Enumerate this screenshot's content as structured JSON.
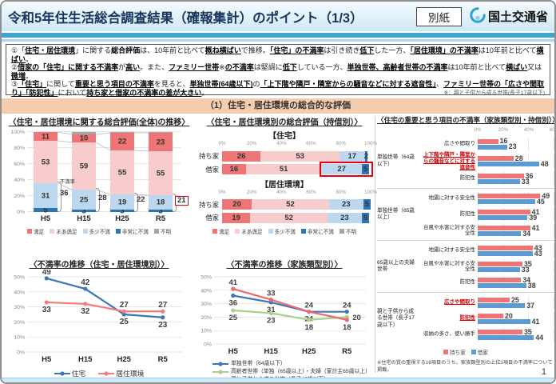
{
  "header": {
    "title": "令和5年住生活総合調査結果（確報集計）のポイント（1/3）",
    "badge": "別紙",
    "ministry": "国土交通省"
  },
  "points": [
    {
      "segments": [
        {
          "t": "①「"
        },
        {
          "t": "住宅・居住環境",
          "b": 1,
          "u": 1
        },
        {
          "t": "」に関する"
        },
        {
          "t": "総合評価",
          "b": 1
        },
        {
          "t": "は、10年前と比べて"
        },
        {
          "t": "概ね横ばい",
          "b": 1,
          "u": 1
        },
        {
          "t": "で推移。"
        },
        {
          "t": "「住宅」の不満率",
          "b": 1,
          "u": 1
        },
        {
          "t": "は引き続き"
        },
        {
          "t": "低下",
          "b": 1,
          "u": 1
        },
        {
          "t": "した一方、"
        },
        {
          "t": "「居住環境」の不満率",
          "b": 1,
          "u": 1
        },
        {
          "t": "は10年前と比べて"
        },
        {
          "t": "横ばい",
          "b": 1,
          "u": 1
        },
        {
          "t": "。"
        }
      ]
    },
    {
      "segments": [
        {
          "t": "②"
        },
        {
          "t": "借家の「住宅」に関する不満率",
          "b": 1,
          "u": 1
        },
        {
          "t": "が"
        },
        {
          "t": "高い",
          "b": 1,
          "u": 1
        },
        {
          "t": "。また、"
        },
        {
          "t": "ファミリー世帯",
          "b": 1,
          "u": 1
        },
        {
          "t": "※"
        },
        {
          "t": "の不満率",
          "b": 1,
          "u": 1
        },
        {
          "t": "は堅調に"
        },
        {
          "t": "低下",
          "b": 1,
          "u": 1
        },
        {
          "t": "している一方、"
        },
        {
          "t": "単独世帯、高齢者世帯の不満率",
          "b": 1,
          "u": 1
        },
        {
          "t": "は10年前と比べて"
        },
        {
          "t": "横ばい",
          "b": 1,
          "u": 1
        },
        {
          "t": "又は"
        },
        {
          "t": "微増",
          "b": 1,
          "u": 1
        },
        {
          "t": "。"
        }
      ]
    },
    {
      "segments": [
        {
          "t": "③"
        },
        {
          "t": "「住宅」",
          "b": 1,
          "u": 1
        },
        {
          "t": "に関して"
        },
        {
          "t": "重要と思う項目の不満率",
          "b": 1,
          "u": 1
        },
        {
          "t": "を見ると、"
        },
        {
          "t": "単独世帯(64歳以下)",
          "b": 1,
          "u": 1
        },
        {
          "t": "の"
        },
        {
          "t": "「上下階や隣戸・隣室からの騒音などに対する遮音性」",
          "b": 1,
          "u": 1
        },
        {
          "t": "、"
        },
        {
          "t": "ファミリー世帯の「広さや間取り」「防犯性」",
          "b": 1,
          "u": 1
        },
        {
          "t": "において"
        },
        {
          "t": "持ち家と借家の不満率の差が大きい",
          "b": 1,
          "u": 1
        },
        {
          "t": "。"
        }
      ]
    }
  ],
  "points_note": "※：親と子供から成る世帯(長子17歳以下)",
  "section_title": "（1）住宅・居住環境の総合的な評価",
  "page_number": "1",
  "colors": {
    "satisfied": "#ee7576",
    "somewhat_satisfied": "#f8cbcc",
    "somewhat_dissatisfied": "#bdd7ee",
    "very_dissatisfied": "#2e75b6",
    "unknown": "#a6a6a6",
    "owned": "#ee7576",
    "rented": "#5b9bd5",
    "highlight_red": "#e60012"
  },
  "chart_data": [
    {
      "id": "overall-evaluation-trend",
      "type": "bar",
      "title": "〈住宅・居住環境に関する総合評価(全体)の推移〉",
      "categories": [
        "H5",
        "H15",
        "H25",
        "R5"
      ],
      "series": [
        {
          "name": "非常に不満",
          "color": "#2e75b6",
          "values": [
            5,
            3,
            3,
            3
          ]
        },
        {
          "name": "多少不満",
          "color": "#bdd7ee",
          "values": [
            31,
            25,
            19,
            18
          ]
        },
        {
          "name": "まあ満足",
          "color": "#f8cbcc",
          "values": [
            53,
            59,
            55,
            55
          ]
        },
        {
          "name": "満足",
          "color": "#ee7576",
          "values": [
            11,
            10,
            22,
            23
          ]
        },
        {
          "name": "不明",
          "color": "#a6a6a6",
          "values": [
            0,
            3,
            1,
            1
          ]
        }
      ],
      "ylim": [
        0,
        100
      ],
      "yticks": [
        "0%",
        "20%",
        "40%",
        "60%",
        "80%",
        "100%"
      ],
      "annotations": {
        "label": "不満率",
        "values": [
          36,
          28,
          22,
          21
        ],
        "boxed_last": true
      },
      "legend": [
        {
          "name": "満足",
          "color": "#ee7576"
        },
        {
          "name": "まあ満足",
          "color": "#f8cbcc"
        },
        {
          "name": "多少不満",
          "color": "#bdd7ee"
        },
        {
          "name": "非常に不満",
          "color": "#2e75b6"
        },
        {
          "name": "不明",
          "color": "#a6a6a6"
        }
      ]
    },
    {
      "id": "evaluation-by-tenure",
      "type": "bar",
      "title": "〈住宅・居住環境別の総合評価（持借別）〉",
      "xticks": [
        "0%",
        "20%",
        "40%",
        "60%",
        "80%",
        "100%"
      ],
      "series": [
        {
          "name": "満足",
          "color": "#ee7576"
        },
        {
          "name": "まあ満足",
          "color": "#f8cbcc"
        },
        {
          "name": "多少不満",
          "color": "#bdd7ee"
        },
        {
          "name": "非常に不満",
          "color": "#2e75b6"
        }
      ],
      "groups": [
        {
          "heading": "【住宅】",
          "rows": [
            {
              "label": "持ち家",
              "values": [
                26,
                53,
                17,
                2
              ]
            },
            {
              "label": "借家",
              "values": [
                16,
                51,
                27,
                5
              ],
              "highlight": true
            }
          ]
        },
        {
          "heading": "【居住環境】",
          "rows": [
            {
              "label": "持ち家",
              "values": [
                20,
                52,
                23,
                5
              ]
            },
            {
              "label": "借家",
              "values": [
                19,
                52,
                23,
                5
              ]
            }
          ]
        }
      ],
      "legend": [
        {
          "name": "満足",
          "color": "#ee7576"
        },
        {
          "name": "まあ満足",
          "color": "#f8cbcc"
        },
        {
          "name": "多少不満",
          "color": "#bdd7ee"
        },
        {
          "name": "非常に不満",
          "color": "#2e75b6"
        },
        {
          "name": "不明",
          "color": "#a6a6a6"
        }
      ]
    },
    {
      "id": "important-item-dissatisfaction",
      "type": "bar",
      "title": "〈住宅の重要と思う項目の不満率（家族類型別・持借別）〉",
      "xlim": [
        0,
        60
      ],
      "xticks": [
        {
          "v": 0,
          "t": "0%"
        },
        {
          "v": 20,
          "t": "20%"
        },
        {
          "v": 40,
          "t": "40%"
        },
        {
          "v": 60,
          "t": "60%"
        }
      ],
      "groups": [
        {
          "label": "単独世帯（64歳以下）",
          "items": [
            {
              "name": "広さや間取り",
              "owned": 16,
              "rented": 23,
              "emphasis": false
            },
            {
              "name": "上下階や隣戸・隣室からの騒音などに対する遮音性",
              "owned": 28,
              "rented": 48,
              "emphasis": true
            },
            {
              "name": "防犯性",
              "owned": 36,
              "rented": 33,
              "emphasis": false
            }
          ]
        },
        {
          "label": "単独世帯（65歳以上）",
          "items": [
            {
              "name": "地震に対する安全性",
              "owned": 49,
              "rented": 45,
              "emphasis": false
            },
            {
              "name": "防犯性",
              "owned": 41,
              "rented": 39,
              "emphasis": false
            },
            {
              "name": "台風や水害に対する安全性",
              "owned": 41,
              "rented": 34,
              "emphasis": false
            }
          ]
        },
        {
          "label": "65歳以上の夫婦世帯",
          "items": [
            {
              "name": "地震に対する安全性",
              "owned": 43,
              "rented": 43,
              "emphasis": false
            },
            {
              "name": "台風や水害に対する安全性",
              "owned": 35,
              "rented": 33,
              "emphasis": false
            },
            {
              "name": "防犯性",
              "owned": 34,
              "rented": 38,
              "emphasis": false
            }
          ]
        },
        {
          "label": "親と子供から成る世帯（長子17歳以下）",
          "items": [
            {
              "name": "広さや間取り",
              "owned": 25,
              "rented": 37,
              "emphasis": true
            },
            {
              "name": "防犯性",
              "owned": 20,
              "rented": 41,
              "emphasis": true
            },
            {
              "name": "収納の多さ、使い勝手",
              "owned": 35,
              "rented": 44,
              "emphasis": false
            }
          ]
        }
      ],
      "legend": [
        {
          "name": "持ち家",
          "color": "#ee7576"
        },
        {
          "name": "借家",
          "color": "#5b9bd5"
        }
      ],
      "footnote": "※住宅の質の重視する18項目のうち、家族類型別の上位3項目の不満率について掲載。"
    },
    {
      "id": "dissatisfaction-trend-by-category",
      "type": "line",
      "title": "〈不満率の推移（住宅・居住環境別）〉",
      "categories": [
        "H5",
        "H15",
        "H25",
        "R5"
      ],
      "series": [
        {
          "name": "住宅",
          "color": "#3c76b8",
          "values": [
            49,
            42,
            25,
            23
          ]
        },
        {
          "name": "居住環境",
          "color": "#f07c7c",
          "values": [
            33,
            32,
            27,
            27
          ]
        }
      ],
      "ylim": [
        0,
        50
      ],
      "yticks": [
        "0%",
        "10%",
        "20%",
        "30%",
        "40%",
        "50%"
      ]
    },
    {
      "id": "dissatisfaction-trend-by-family-type",
      "type": "line",
      "title": "〈不満率の推移（家族類型別）〉",
      "categories": [
        "H5",
        "H15",
        "H25",
        "R5"
      ],
      "series": [
        {
          "name": "単独世帯（64歳以下）",
          "color": "#3c76b8",
          "values": [
            36,
            31,
            24,
            24
          ]
        },
        {
          "name": "高齢者世帯（単独（65歳以上）・夫婦（家計主65歳以上）",
          "color": "#a9d18e",
          "values": [
            25,
            23,
            18,
            20
          ]
        },
        {
          "name": "親と子供から成る世帯（長子17歳以下）",
          "color": "#ec6a6d",
          "values": [
            41,
            33,
            24,
            18
          ]
        }
      ],
      "ylim": [
        0,
        50
      ],
      "yticks": [
        "0%",
        "10%",
        "20%",
        "30%",
        "40%",
        "50%"
      ]
    }
  ]
}
